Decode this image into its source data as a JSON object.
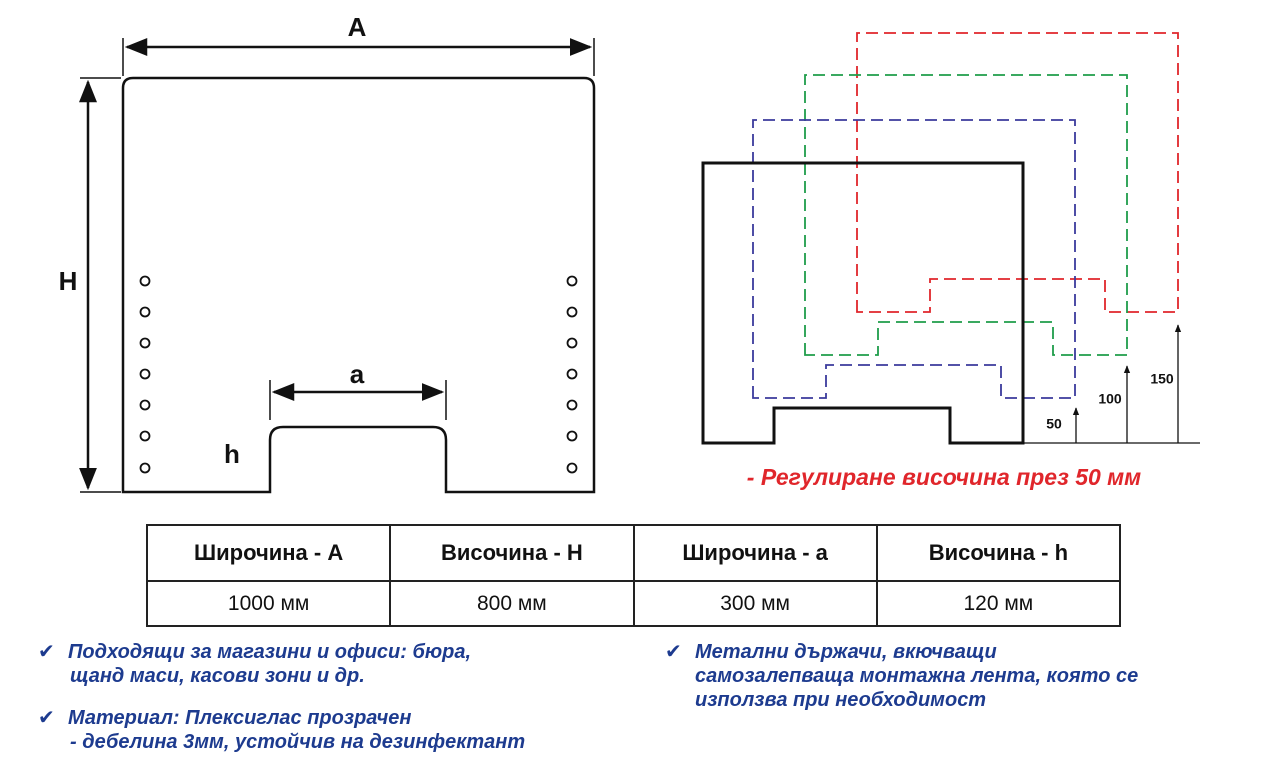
{
  "panel": {
    "labels": {
      "width": "A",
      "height": "H",
      "cutout_width": "a",
      "cutout_height": "h"
    }
  },
  "adjustment": {
    "steps": [
      "50",
      "100",
      "150"
    ],
    "caption": "- Регулиране височина през 50 мм"
  },
  "table": {
    "header": [
      "Широчина - A",
      "Височина - H",
      "Широчина - a",
      "Височина - h"
    ],
    "rows": [
      [
        "1000 мм",
        "800 мм",
        "300 мм",
        "120 мм"
      ]
    ]
  },
  "features": [
    {
      "lines": [
        "Подходящи за магазини и офиси: бюра,",
        "щанд маси, касови зони и др."
      ]
    },
    {
      "lines": [
        "Материал: Плексиглас прозрачен",
        "- дебелина 3мм, устойчив на дезинфектант"
      ]
    },
    {
      "lines": [
        "Метални държачи, вкючващи",
        "самозалепваща монтажна лента, която се",
        "използва при необходимост"
      ]
    }
  ]
}
